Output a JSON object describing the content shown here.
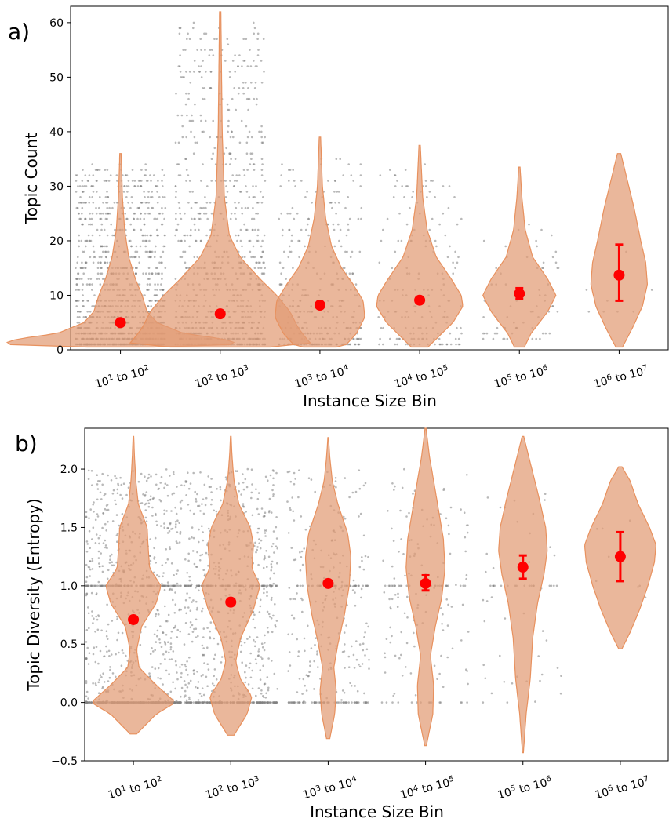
{
  "panel_labels": [
    "a)",
    "b)"
  ],
  "colors": {
    "violin_fill": "#e29b74",
    "violin_edge": "#e8915e",
    "points": "#808080",
    "mean_marker": "#ff0000"
  },
  "chart_data": [
    {
      "type": "violin",
      "panel": "a)",
      "xlabel": "Instance Size Bin",
      "ylabel": "Topic Count",
      "ylim": [
        0,
        63
      ],
      "yticks": [
        0,
        10,
        20,
        30,
        40,
        50,
        60
      ],
      "grid": false,
      "categories": [
        {
          "pre": "10",
          "e1": "1",
          "mid": " to 10",
          "e2": "2"
        },
        {
          "pre": "10",
          "e1": "2",
          "mid": " to 10",
          "e2": "3"
        },
        {
          "pre": "10",
          "e1": "3",
          "mid": " to 10",
          "e2": "4"
        },
        {
          "pre": "10",
          "e1": "4",
          "mid": " to 10",
          "e2": "5"
        },
        {
          "pre": "10",
          "e1": "5",
          "mid": " to 10",
          "e2": "6"
        },
        {
          "pre": "10",
          "e1": "6",
          "mid": " to 10",
          "e2": "7"
        }
      ],
      "means": [
        5.0,
        6.6,
        8.2,
        9.1,
        10.3,
        13.7
      ],
      "errors": [
        [
          4.8,
          5.2
        ],
        [
          6.4,
          6.8
        ],
        [
          7.9,
          8.5
        ],
        [
          8.6,
          9.6
        ],
        [
          9.3,
          11.3
        ],
        [
          9.0,
          19.3
        ]
      ],
      "violin_range": [
        [
          0.5,
          36
        ],
        [
          0.5,
          62
        ],
        [
          0.5,
          39
        ],
        [
          0.5,
          37.5
        ],
        [
          0.5,
          33.5
        ],
        [
          0.5,
          36
        ]
      ],
      "violin_profiles": [
        [
          [
            0.5,
            0.2
          ],
          [
            1,
            0.72
          ],
          [
            2,
            0.62
          ],
          [
            3,
            0.38
          ],
          [
            5,
            0.22
          ],
          [
            7,
            0.16
          ],
          [
            10,
            0.13
          ],
          [
            13,
            0.09
          ],
          [
            17,
            0.05
          ],
          [
            22,
            0.025
          ],
          [
            28,
            0.012
          ],
          [
            36,
            0.004
          ]
        ],
        [
          [
            0.5,
            0.3
          ],
          [
            1,
            0.55
          ],
          [
            2,
            0.52
          ],
          [
            4,
            0.47
          ],
          [
            7,
            0.42
          ],
          [
            10,
            0.34
          ],
          [
            13,
            0.24
          ],
          [
            17,
            0.12
          ],
          [
            21,
            0.055
          ],
          [
            28,
            0.025
          ],
          [
            40,
            0.012
          ],
          [
            62,
            0.004
          ]
        ],
        [
          [
            0.5,
            0.1
          ],
          [
            1,
            0.16
          ],
          [
            3,
            0.22
          ],
          [
            6,
            0.27
          ],
          [
            9,
            0.26
          ],
          [
            12,
            0.2
          ],
          [
            15,
            0.13
          ],
          [
            19,
            0.07
          ],
          [
            24,
            0.035
          ],
          [
            30,
            0.015
          ],
          [
            39,
            0.004
          ]
        ],
        [
          [
            0.5,
            0.05
          ],
          [
            2,
            0.1
          ],
          [
            5,
            0.2
          ],
          [
            8,
            0.26
          ],
          [
            10,
            0.25
          ],
          [
            13,
            0.19
          ],
          [
            17,
            0.1
          ],
          [
            22,
            0.045
          ],
          [
            28,
            0.018
          ],
          [
            37.5,
            0.004
          ]
        ],
        [
          [
            0.5,
            0.03
          ],
          [
            3,
            0.07
          ],
          [
            7,
            0.17
          ],
          [
            10,
            0.22
          ],
          [
            13,
            0.17
          ],
          [
            17,
            0.08
          ],
          [
            22,
            0.035
          ],
          [
            28,
            0.015
          ],
          [
            33.5,
            0.004
          ]
        ],
        [
          [
            0.5,
            0.02
          ],
          [
            4,
            0.08
          ],
          [
            8,
            0.14
          ],
          [
            12,
            0.17
          ],
          [
            16,
            0.16
          ],
          [
            20,
            0.13
          ],
          [
            26,
            0.09
          ],
          [
            31,
            0.05
          ],
          [
            36,
            0.01
          ]
        ]
      ],
      "scatter_spread": [
        0.45,
        0.45,
        0.42,
        0.42,
        0.4,
        0.35
      ],
      "point_counts": [
        1100,
        900,
        350,
        180,
        70,
        8
      ],
      "point_ranges": [
        [
          1,
          34
        ],
        [
          1,
          60
        ],
        [
          1,
          36
        ],
        [
          1,
          34
        ],
        [
          2,
          23
        ],
        [
          7,
          26
        ]
      ]
    },
    {
      "type": "violin",
      "panel": "b)",
      "xlabel": "Instance Size Bin",
      "ylabel": "Topic Diversity (Entropy)",
      "ylim": [
        -0.5,
        2.35
      ],
      "yticks": [
        -0.5,
        0.0,
        0.5,
        1.0,
        1.5,
        2.0
      ],
      "ytick_labels": [
        "−0.5",
        "0.0",
        "0.5",
        "1.0",
        "1.5",
        "2.0"
      ],
      "grid": false,
      "categories": [
        {
          "pre": "10",
          "e1": "1",
          "mid": " to 10",
          "e2": "2"
        },
        {
          "pre": "10",
          "e1": "2",
          "mid": " to 10",
          "e2": "3"
        },
        {
          "pre": "10",
          "e1": "3",
          "mid": " to 10",
          "e2": "4"
        },
        {
          "pre": "10",
          "e1": "4",
          "mid": " to 10",
          "e2": "5"
        },
        {
          "pre": "10",
          "e1": "5",
          "mid": " to 10",
          "e2": "6"
        },
        {
          "pre": "10",
          "e1": "6",
          "mid": " to 10",
          "e2": "7"
        }
      ],
      "means": [
        0.71,
        0.86,
        1.02,
        1.02,
        1.16,
        1.25
      ],
      "errors": [
        [
          0.69,
          0.73
        ],
        [
          0.84,
          0.88
        ],
        [
          0.99,
          1.05
        ],
        [
          0.96,
          1.09
        ],
        [
          1.06,
          1.26
        ],
        [
          1.04,
          1.46
        ]
      ],
      "violin_range": [
        [
          -0.27,
          2.28
        ],
        [
          -0.28,
          2.28
        ],
        [
          -0.31,
          2.27
        ],
        [
          -0.37,
          2.35
        ],
        [
          -0.43,
          2.28
        ],
        [
          0.46,
          2.02
        ]
      ],
      "violin_profiles": [
        [
          [
            -0.27,
            0.02
          ],
          [
            -0.1,
            0.14
          ],
          [
            0.0,
            0.26
          ],
          [
            0.15,
            0.14
          ],
          [
            0.3,
            0.035
          ],
          [
            0.45,
            0.02
          ],
          [
            0.65,
            0.05
          ],
          [
            0.85,
            0.14
          ],
          [
            1.0,
            0.17
          ],
          [
            1.15,
            0.1
          ],
          [
            1.35,
            0.09
          ],
          [
            1.5,
            0.085
          ],
          [
            1.7,
            0.03
          ],
          [
            1.9,
            0.015
          ],
          [
            2.1,
            0.007
          ],
          [
            2.28,
            0.002
          ]
        ],
        [
          [
            -0.28,
            0.02
          ],
          [
            -0.1,
            0.1
          ],
          [
            0.05,
            0.13
          ],
          [
            0.2,
            0.06
          ],
          [
            0.35,
            0.03
          ],
          [
            0.55,
            0.06
          ],
          [
            0.8,
            0.14
          ],
          [
            1.0,
            0.18
          ],
          [
            1.15,
            0.13
          ],
          [
            1.35,
            0.14
          ],
          [
            1.5,
            0.12
          ],
          [
            1.7,
            0.05
          ],
          [
            1.9,
            0.02
          ],
          [
            2.1,
            0.008
          ],
          [
            2.28,
            0.002
          ]
        ],
        [
          [
            -0.31,
            0.01
          ],
          [
            -0.1,
            0.04
          ],
          [
            0.1,
            0.05
          ],
          [
            0.3,
            0.035
          ],
          [
            0.5,
            0.06
          ],
          [
            0.75,
            0.1
          ],
          [
            1.0,
            0.13
          ],
          [
            1.25,
            0.14
          ],
          [
            1.45,
            0.12
          ],
          [
            1.7,
            0.06
          ],
          [
            1.9,
            0.025
          ],
          [
            2.1,
            0.01
          ],
          [
            2.27,
            0.002
          ]
        ],
        [
          [
            -0.37,
            0.005
          ],
          [
            -0.1,
            0.045
          ],
          [
            0.15,
            0.05
          ],
          [
            0.4,
            0.03
          ],
          [
            0.65,
            0.06
          ],
          [
            0.9,
            0.1
          ],
          [
            1.15,
            0.12
          ],
          [
            1.4,
            0.11
          ],
          [
            1.65,
            0.08
          ],
          [
            1.9,
            0.05
          ],
          [
            2.1,
            0.025
          ],
          [
            2.35,
            0.003
          ]
        ],
        [
          [
            -0.43,
            0.003
          ],
          [
            -0.1,
            0.02
          ],
          [
            0.2,
            0.045
          ],
          [
            0.55,
            0.06
          ],
          [
            0.85,
            0.09
          ],
          [
            1.1,
            0.13
          ],
          [
            1.3,
            0.15
          ],
          [
            1.5,
            0.14
          ],
          [
            1.75,
            0.1
          ],
          [
            2.0,
            0.055
          ],
          [
            2.28,
            0.005
          ]
        ],
        [
          [
            0.46,
            0.01
          ],
          [
            0.6,
            0.06
          ],
          [
            0.8,
            0.12
          ],
          [
            1.0,
            0.17
          ],
          [
            1.2,
            0.21
          ],
          [
            1.35,
            0.22
          ],
          [
            1.5,
            0.18
          ],
          [
            1.7,
            0.11
          ],
          [
            1.9,
            0.06
          ],
          [
            2.02,
            0.01
          ]
        ]
      ],
      "scatter_spread": [
        0.5,
        0.48,
        0.42,
        0.45,
        0.42,
        0.3
      ],
      "point_counts": [
        1000,
        800,
        330,
        170,
        60,
        8
      ],
      "point_ranges": [
        [
          0,
          2.0
        ],
        [
          0,
          2.0
        ],
        [
          0,
          2.0
        ],
        [
          0,
          2.0
        ],
        [
          0,
          1.85
        ],
        [
          0.8,
          1.75
        ]
      ],
      "zero_fraction": [
        0.3,
        0.25,
        0.18,
        0.14,
        0.12,
        0.0
      ]
    }
  ]
}
